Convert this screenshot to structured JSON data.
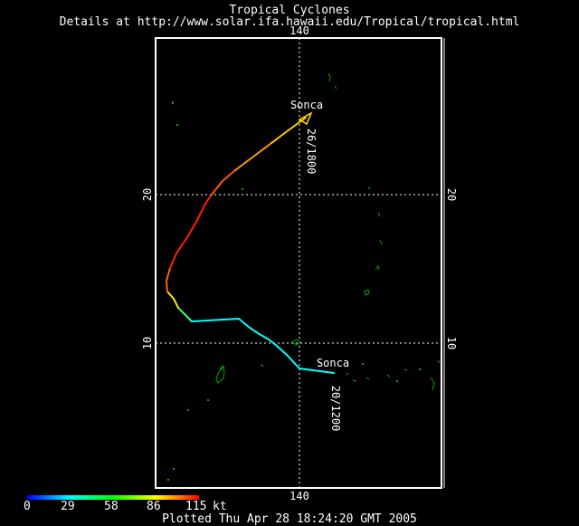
{
  "header": {
    "title": "Tropical Cyclones",
    "subtitle": "Details at http://www.solar.ifa.hawaii.edu/Tropical/tropical.html"
  },
  "footer": {
    "plotted": "Plotted Thu Apr 28 18:24:20 GMT 2005"
  },
  "map": {
    "lon_label_top": "140",
    "lon_label_bottom": "140",
    "lat_20_left": "20",
    "lat_20_right": "20",
    "lat_10_left": "10",
    "lat_10_right": "10",
    "grid": "dotted",
    "land_color": "#00aa00",
    "frame_color": "#ffffff"
  },
  "storm": {
    "name_start": "Sonca",
    "name_end": "Sonca",
    "time_start": "20/1200",
    "time_end": "26/1800"
  },
  "legend": {
    "ticks": [
      "0",
      "29",
      "58",
      "86",
      "115"
    ],
    "unit": "kt",
    "colors": [
      "#0000ff",
      "#00ffff",
      "#00ff00",
      "#ffff00",
      "#ff0000"
    ]
  }
}
